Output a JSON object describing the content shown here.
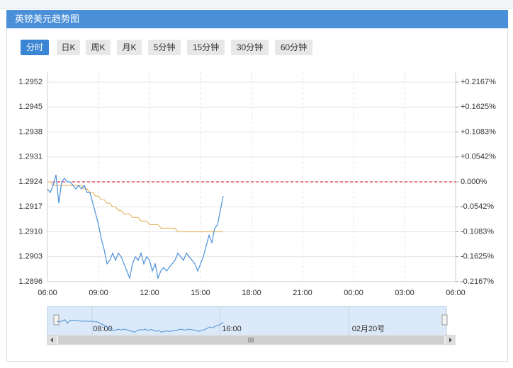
{
  "header": {
    "title": "英镑美元趋势图"
  },
  "tabs": [
    "分时",
    "日K",
    "周K",
    "月K",
    "5分钟",
    "15分钟",
    "30分钟",
    "60分钟"
  ],
  "active_tab": 0,
  "chart_data": {
    "type": "line",
    "x": [
      "06:00",
      "06:10",
      "06:20",
      "06:30",
      "06:40",
      "06:50",
      "07:00",
      "07:10",
      "07:20",
      "07:30",
      "07:40",
      "07:50",
      "08:00",
      "08:10",
      "08:20",
      "08:30",
      "08:40",
      "08:50",
      "09:00",
      "09:10",
      "09:20",
      "09:30",
      "09:40",
      "09:50",
      "10:00",
      "10:10",
      "10:20",
      "10:30",
      "10:40",
      "10:50",
      "11:00",
      "11:10",
      "11:20",
      "11:30",
      "11:40",
      "11:50",
      "12:00",
      "12:10",
      "12:20",
      "12:30",
      "12:40",
      "12:50",
      "13:00",
      "13:10",
      "13:20",
      "13:30",
      "13:40",
      "13:50",
      "14:00",
      "14:10",
      "14:20",
      "14:30",
      "14:40",
      "14:50",
      "15:00",
      "15:10",
      "15:20",
      "15:30",
      "15:40",
      "15:50",
      "16:00",
      "16:10",
      "16:20"
    ],
    "series": [
      {
        "color": "#4a90d9",
        "values": [
          1.2922,
          1.2921,
          1.2923,
          1.2926,
          1.2918,
          1.2924,
          1.2925,
          1.2924,
          1.2924,
          1.2923,
          1.2922,
          1.2923,
          1.2922,
          1.2923,
          1.2921,
          1.2921,
          1.2918,
          1.2915,
          1.2912,
          1.2908,
          1.2905,
          1.2901,
          1.2902,
          1.2904,
          1.2902,
          1.2904,
          1.2903,
          1.2901,
          1.2899,
          1.2897,
          1.2901,
          1.2903,
          1.2902,
          1.2904,
          1.2901,
          1.2903,
          1.2902,
          1.2899,
          1.2901,
          1.2897,
          1.2899,
          1.29,
          1.2899,
          1.29,
          1.2901,
          1.2902,
          1.2904,
          1.2903,
          1.2902,
          1.2904,
          1.2903,
          1.2902,
          1.2901,
          1.2899,
          1.2901,
          1.2903,
          1.2906,
          1.2909,
          1.2907,
          1.2911,
          1.2912,
          1.2916,
          1.292
        ]
      },
      {
        "color": "#e8b96a",
        "values": [
          1.2924,
          1.2924,
          1.2923,
          1.2923,
          1.2923,
          1.2923,
          1.2923,
          1.2923,
          1.2923,
          1.2923,
          1.2923,
          1.2923,
          1.2923,
          1.2922,
          1.2922,
          1.2921,
          1.2921,
          1.292,
          1.292,
          1.2919,
          1.2919,
          1.2918,
          1.2918,
          1.2917,
          1.2917,
          1.2916,
          1.2916,
          1.2915,
          1.2915,
          1.2915,
          1.2914,
          1.2914,
          1.2914,
          1.2913,
          1.2913,
          1.2913,
          1.2912,
          1.2912,
          1.2912,
          1.2912,
          1.2911,
          1.2911,
          1.2911,
          1.2911,
          1.2911,
          1.2911,
          1.291,
          1.291,
          1.291,
          1.291,
          1.291,
          1.291,
          1.291,
          1.291,
          1.291,
          1.291,
          1.291,
          1.291,
          1.291,
          1.291,
          1.291,
          1.291,
          1.291
        ]
      }
    ],
    "xlim": [
      "06:00",
      "06:00"
    ],
    "xticks": [
      "06:00",
      "09:00",
      "12:00",
      "15:00",
      "18:00",
      "21:00",
      "00:00",
      "03:00",
      "06:00"
    ],
    "ylim": [
      1.2896,
      1.2952
    ],
    "yticks": [
      1.2952,
      1.2945,
      1.2938,
      1.2931,
      1.2924,
      1.2917,
      {
        "value": 1.291,
        "label": "1.2910"
      },
      1.2903,
      1.2896
    ],
    "y2lim": [
      -0.2167,
      0.2167
    ],
    "y2ticks": [
      {
        "value": 0.2167,
        "label": "+0.2167%"
      },
      {
        "value": 0.1625,
        "label": "+0.1625%"
      },
      {
        "value": 0.1083,
        "label": "+0.1083%"
      },
      {
        "value": 0.0542,
        "label": "+0.0542%"
      },
      {
        "value": 0,
        "label": "0.000%"
      },
      {
        "value": -0.0542,
        "label": "-0.0542%"
      },
      {
        "value": -0.1083,
        "label": "-0.1083%"
      },
      {
        "value": -0.1625,
        "label": "-0.1625%"
      },
      {
        "value": -0.2167,
        "label": "-0.2167%"
      }
    ],
    "reference_line": 1.2924,
    "grid": true
  },
  "navigator": {
    "labels": [
      "08:00",
      "16:00",
      "02月20号"
    ]
  }
}
